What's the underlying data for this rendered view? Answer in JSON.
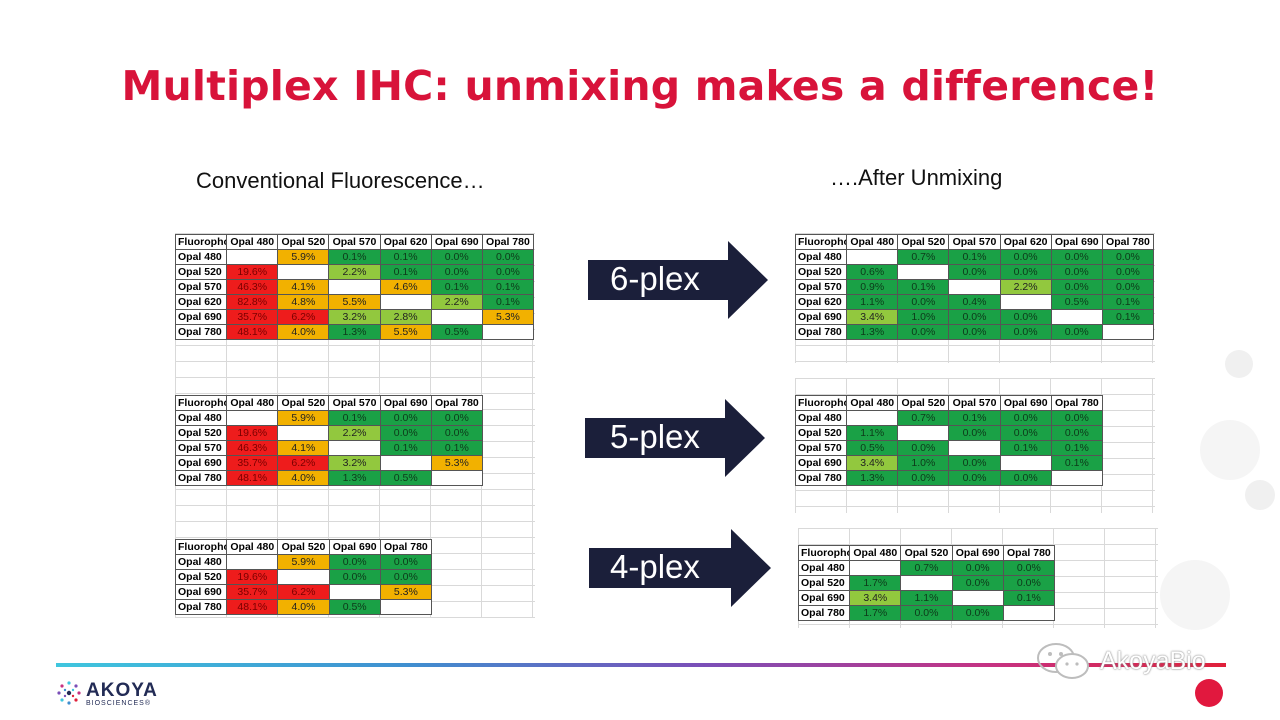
{
  "title": "Multiplex IHC: unmixing makes a difference!",
  "left_heading": "Conventional Fluorescence…",
  "right_heading": "….After Unmixing",
  "arrows": [
    "6-plex",
    "5-plex",
    "4-plex"
  ],
  "watermark": "AkoyaBio",
  "logo": {
    "name": "AKOYA",
    "sub": "BIOSCIENCES®"
  },
  "colors": {
    "title": "#d8133a",
    "red": "#ee1c1c",
    "orange": "#f2b100",
    "light_green": "#92c83e",
    "green": "#1aa146",
    "arrow": "#1b1f3a"
  },
  "tables": {
    "conv6": {
      "header": [
        "Fluorophore",
        "Opal 480",
        "Opal 520",
        "Opal 570",
        "Opal 620",
        "Opal 690",
        "Opal 780"
      ],
      "rows": [
        [
          "Opal 480",
          "",
          "5.9%",
          "0.1%",
          "0.1%",
          "0.0%",
          "0.0%"
        ],
        [
          "Opal 520",
          "19.6%",
          "",
          "2.2%",
          "0.1%",
          "0.0%",
          "0.0%"
        ],
        [
          "Opal 570",
          "46.3%",
          "4.1%",
          "",
          "4.6%",
          "0.1%",
          "0.1%"
        ],
        [
          "Opal 620",
          "82.8%",
          "4.8%",
          "5.5%",
          "",
          "2.2%",
          "0.1%"
        ],
        [
          "Opal 690",
          "35.7%",
          "6.2%",
          "3.2%",
          "2.8%",
          "",
          "5.3%"
        ],
        [
          "Opal 780",
          "48.1%",
          "4.0%",
          "1.3%",
          "5.5%",
          "0.5%",
          ""
        ]
      ],
      "colors": [
        [
          "e",
          "o",
          "g",
          "g",
          "g",
          "g"
        ],
        [
          "r",
          "e",
          "lg",
          "g",
          "g",
          "g"
        ],
        [
          "r",
          "o",
          "e",
          "o",
          "g",
          "g"
        ],
        [
          "r",
          "o",
          "o",
          "e",
          "lg",
          "g"
        ],
        [
          "r",
          "r",
          "lg",
          "lg",
          "e",
          "o"
        ],
        [
          "r",
          "o",
          "g",
          "o",
          "g",
          "e"
        ]
      ]
    },
    "conv5": {
      "header": [
        "Fluorophore",
        "Opal 480",
        "Opal 520",
        "Opal 570",
        "Opal 690",
        "Opal 780"
      ],
      "rows": [
        [
          "Opal 480",
          "",
          "5.9%",
          "0.1%",
          "0.0%",
          "0.0%"
        ],
        [
          "Opal 520",
          "19.6%",
          "",
          "2.2%",
          "0.0%",
          "0.0%"
        ],
        [
          "Opal 570",
          "46.3%",
          "4.1%",
          "",
          "0.1%",
          "0.1%"
        ],
        [
          "Opal 690",
          "35.7%",
          "6.2%",
          "3.2%",
          "",
          "5.3%"
        ],
        [
          "Opal 780",
          "48.1%",
          "4.0%",
          "1.3%",
          "0.5%",
          ""
        ]
      ],
      "colors": [
        [
          "e",
          "o",
          "g",
          "g",
          "g"
        ],
        [
          "r",
          "e",
          "lg",
          "g",
          "g"
        ],
        [
          "r",
          "o",
          "e",
          "g",
          "g"
        ],
        [
          "r",
          "r",
          "lg",
          "e",
          "o"
        ],
        [
          "r",
          "o",
          "g",
          "g",
          "e"
        ]
      ]
    },
    "conv4": {
      "header": [
        "Fluorophore",
        "Opal 480",
        "Opal 520",
        "Opal 690",
        "Opal 780"
      ],
      "rows": [
        [
          "Opal 480",
          "",
          "5.9%",
          "0.0%",
          "0.0%"
        ],
        [
          "Opal 520",
          "19.6%",
          "",
          "0.0%",
          "0.0%"
        ],
        [
          "Opal 690",
          "35.7%",
          "6.2%",
          "",
          "5.3%"
        ],
        [
          "Opal 780",
          "48.1%",
          "4.0%",
          "0.5%",
          ""
        ]
      ],
      "colors": [
        [
          "e",
          "o",
          "g",
          "g"
        ],
        [
          "r",
          "e",
          "g",
          "g"
        ],
        [
          "r",
          "r",
          "e",
          "o"
        ],
        [
          "r",
          "o",
          "g",
          "e"
        ]
      ]
    },
    "unmix6": {
      "header": [
        "Fluorophore",
        "Opal 480",
        "Opal 520",
        "Opal 570",
        "Opal 620",
        "Opal 690",
        "Opal 780"
      ],
      "rows": [
        [
          "Opal 480",
          "",
          "0.7%",
          "0.1%",
          "0.0%",
          "0.0%",
          "0.0%"
        ],
        [
          "Opal 520",
          "0.6%",
          "",
          "0.0%",
          "0.0%",
          "0.0%",
          "0.0%"
        ],
        [
          "Opal 570",
          "0.9%",
          "0.1%",
          "",
          "2.2%",
          "0.0%",
          "0.0%"
        ],
        [
          "Opal 620",
          "1.1%",
          "0.0%",
          "0.4%",
          "",
          "0.5%",
          "0.1%"
        ],
        [
          "Opal 690",
          "3.4%",
          "1.0%",
          "0.0%",
          "0.0%",
          "",
          "0.1%"
        ],
        [
          "Opal 780",
          "1.3%",
          "0.0%",
          "0.0%",
          "0.0%",
          "0.0%",
          ""
        ]
      ],
      "colors": [
        [
          "e",
          "g",
          "g",
          "g",
          "g",
          "g"
        ],
        [
          "g",
          "e",
          "g",
          "g",
          "g",
          "g"
        ],
        [
          "g",
          "g",
          "e",
          "lg",
          "g",
          "g"
        ],
        [
          "g",
          "g",
          "g",
          "e",
          "g",
          "g"
        ],
        [
          "lg",
          "g",
          "g",
          "g",
          "e",
          "g"
        ],
        [
          "g",
          "g",
          "g",
          "g",
          "g",
          "e"
        ]
      ]
    },
    "unmix5": {
      "header": [
        "Fluorophore",
        "Opal 480",
        "Opal 520",
        "Opal 570",
        "Opal 690",
        "Opal 780"
      ],
      "rows": [
        [
          "Opal 480",
          "",
          "0.7%",
          "0.1%",
          "0.0%",
          "0.0%"
        ],
        [
          "Opal 520",
          "1.1%",
          "",
          "0.0%",
          "0.0%",
          "0.0%"
        ],
        [
          "Opal 570",
          "0.5%",
          "0.0%",
          "",
          "0.1%",
          "0.1%"
        ],
        [
          "Opal 690",
          "3.4%",
          "1.0%",
          "0.0%",
          "",
          "0.1%"
        ],
        [
          "Opal 780",
          "1.3%",
          "0.0%",
          "0.0%",
          "0.0%",
          ""
        ]
      ],
      "colors": [
        [
          "e",
          "g",
          "g",
          "g",
          "g"
        ],
        [
          "g",
          "e",
          "g",
          "g",
          "g"
        ],
        [
          "g",
          "g",
          "e",
          "g",
          "g"
        ],
        [
          "lg",
          "g",
          "g",
          "e",
          "g"
        ],
        [
          "g",
          "g",
          "g",
          "g",
          "e"
        ]
      ]
    },
    "unmix4": {
      "header": [
        "Fluorophore",
        "Opal 480",
        "Opal 520",
        "Opal 690",
        "Opal 780"
      ],
      "rows": [
        [
          "Opal 480",
          "",
          "0.7%",
          "0.0%",
          "0.0%"
        ],
        [
          "Opal 520",
          "1.7%",
          "",
          "0.0%",
          "0.0%"
        ],
        [
          "Opal 690",
          "3.4%",
          "1.1%",
          "",
          "0.1%"
        ],
        [
          "Opal 780",
          "1.7%",
          "0.0%",
          "0.0%",
          ""
        ]
      ],
      "colors": [
        [
          "e",
          "g",
          "g",
          "g"
        ],
        [
          "g",
          "e",
          "g",
          "g"
        ],
        [
          "lg",
          "g",
          "e",
          "g"
        ],
        [
          "g",
          "g",
          "g",
          "e"
        ]
      ]
    }
  }
}
